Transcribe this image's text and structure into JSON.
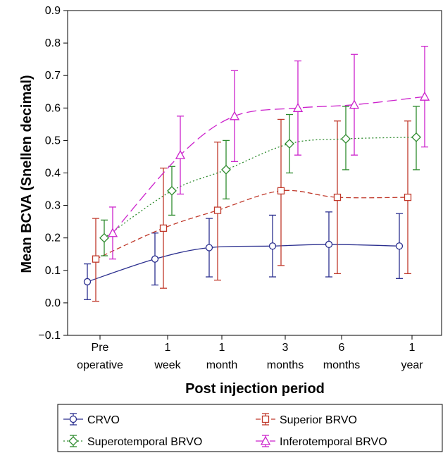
{
  "chart_data": {
    "type": "line",
    "xlabel": "Post injection period",
    "ylabel": "Mean BCVA  (Snellen decimal)",
    "categories": [
      [
        "Pre",
        "operative"
      ],
      [
        "1",
        "week"
      ],
      [
        "1",
        "month"
      ],
      [
        "3",
        "months"
      ],
      [
        "6",
        "months"
      ],
      [
        "1",
        "year"
      ]
    ],
    "ylim": [
      -0.1,
      0.9
    ],
    "yticks": [
      "−0.1",
      "0.0",
      "0.1",
      "0.2",
      "0.3",
      "0.4",
      "0.5",
      "0.6",
      "0.7",
      "0.8",
      "0.9"
    ],
    "grid": false,
    "legend_position": "bottom",
    "series": [
      {
        "name": "CRVO",
        "color": "#2b2f8f",
        "marker": "circle",
        "dash": "solid",
        "values": [
          0.065,
          0.135,
          0.17,
          0.175,
          0.18,
          0.175
        ],
        "lower": [
          0.01,
          0.055,
          0.08,
          0.08,
          0.08,
          0.075
        ],
        "upper": [
          0.12,
          0.215,
          0.26,
          0.27,
          0.28,
          0.275
        ]
      },
      {
        "name": "Superior BRVO",
        "color": "#c0392b",
        "marker": "square",
        "dash": "dashed",
        "values": [
          0.135,
          0.23,
          0.285,
          0.345,
          0.325,
          0.325
        ],
        "lower": [
          0.005,
          0.045,
          0.07,
          0.115,
          0.09,
          0.09
        ],
        "upper": [
          0.26,
          0.415,
          0.495,
          0.565,
          0.56,
          0.56
        ]
      },
      {
        "name": "Superotemporal BRVO",
        "color": "#2e8b2e",
        "marker": "diamond",
        "dash": "dotted",
        "values": [
          0.2,
          0.345,
          0.41,
          0.49,
          0.505,
          0.51
        ],
        "lower": [
          0.145,
          0.27,
          0.32,
          0.4,
          0.41,
          0.41
        ],
        "upper": [
          0.255,
          0.42,
          0.5,
          0.58,
          0.605,
          0.605
        ]
      },
      {
        "name": "Inferotemporal BRVO",
        "color": "#cc22cc",
        "marker": "triangle",
        "dash": "longdash",
        "values": [
          0.215,
          0.455,
          0.575,
          0.6,
          0.61,
          0.635
        ],
        "lower": [
          0.135,
          0.335,
          0.435,
          0.455,
          0.455,
          0.48
        ],
        "upper": [
          0.295,
          0.575,
          0.715,
          0.745,
          0.765,
          0.79
        ]
      }
    ]
  }
}
